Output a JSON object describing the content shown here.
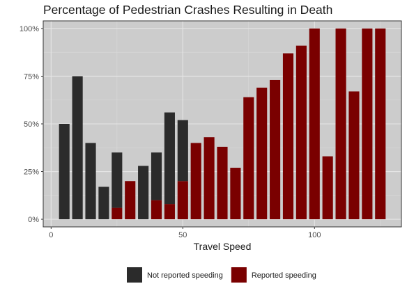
{
  "chart_data": {
    "type": "bar",
    "title": "Percentage of Pedestrian Crashes Resulting in Death",
    "xlabel": "Travel Speed",
    "ylabel": "",
    "xlim": [
      -3,
      133
    ],
    "ylim": [
      -0.04,
      1.04
    ],
    "x_ticks": [
      0,
      50,
      100
    ],
    "x_tick_labels": [
      "0",
      "50",
      "100"
    ],
    "y_ticks": [
      0,
      0.25,
      0.5,
      0.75,
      1.0
    ],
    "y_tick_labels": [
      "0%",
      "25%",
      "50%",
      "75%",
      "100%"
    ],
    "grid": true,
    "legend_position": "bottom",
    "colors": {
      "panel_bg": "#cccccc",
      "grid_major": "#e6e6e6",
      "grid_minor": "#dadada",
      "not_reported": "#2b2b2b",
      "reported": "#7a0000"
    },
    "series": [
      {
        "name": "Not reported speeding",
        "color": "#2b2b2b",
        "x": [
          5,
          10,
          15,
          20,
          25,
          35,
          40,
          45,
          50
        ],
        "values": [
          0.5,
          0.75,
          0.4,
          0.17,
          0.29,
          0.28,
          0.25,
          0.48,
          0.32
        ]
      },
      {
        "name": "Reported speeding",
        "color": "#7a0000",
        "x": [
          25,
          30,
          40,
          45,
          50,
          55,
          60,
          65,
          70,
          75,
          80,
          85,
          90,
          95,
          100,
          105,
          110,
          115,
          120,
          125
        ],
        "values": [
          0.06,
          0.2,
          0.1,
          0.08,
          0.2,
          0.4,
          0.43,
          0.38,
          0.27,
          0.64,
          0.69,
          0.73,
          0.87,
          0.91,
          1.0,
          0.33,
          1.0,
          0.67,
          1.0,
          1.0
        ]
      }
    ]
  }
}
